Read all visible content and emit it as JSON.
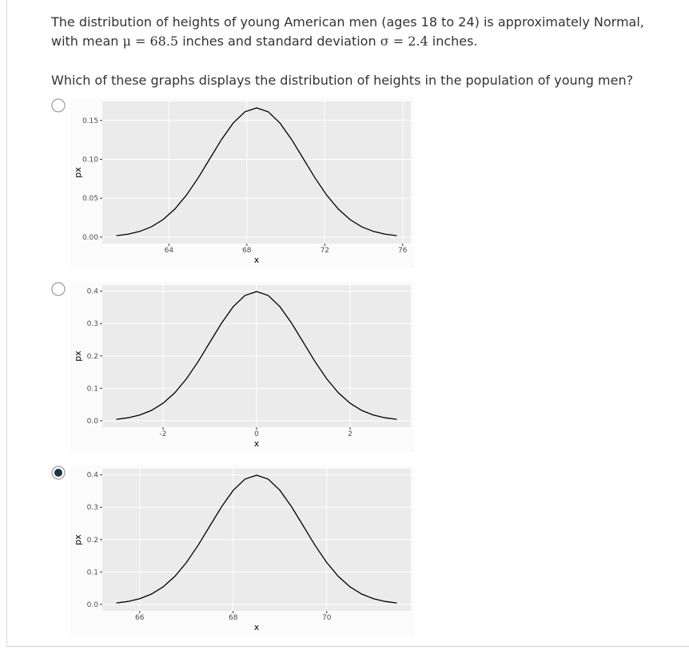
{
  "question": {
    "intro": [
      "The distribution of heights of young American men (ages 18 to 24) is approximately Normal, with mean",
      "μ = 68.5",
      "inches and standard deviation",
      "σ = 2.4",
      "inches."
    ],
    "prompt": "Which of these graphs displays the distribution of heights in the population of young men?"
  },
  "options": [
    {
      "selected": false,
      "chart_data": {
        "type": "line",
        "color": "#000000",
        "grid": true,
        "xlabel": "x",
        "ylabel": "px",
        "x": [
          61.3,
          61.9,
          62.5,
          63.1,
          63.7,
          64.3,
          64.9,
          65.5,
          66.1,
          66.7,
          67.3,
          67.9,
          68.5,
          69.1,
          69.7,
          70.3,
          70.9,
          71.5,
          72.1,
          72.7,
          73.3,
          73.9,
          74.5,
          75.1,
          75.7
        ],
        "values": [
          0.0018,
          0.0038,
          0.0073,
          0.0132,
          0.0225,
          0.036,
          0.054,
          0.0761,
          0.1008,
          0.1255,
          0.1467,
          0.1611,
          0.1662,
          0.1611,
          0.1467,
          0.1255,
          0.1008,
          0.0761,
          0.054,
          0.036,
          0.0225,
          0.0132,
          0.0073,
          0.0038,
          0.0018
        ],
        "xlim": [
          60.58,
          76.42
        ],
        "ylim": [
          -0.0083,
          0.1745
        ],
        "xticks": [
          64,
          68,
          72,
          76
        ],
        "yticks": [
          {
            "value": 0,
            "label": "0.00"
          },
          0.05,
          {
            "value": 0.1,
            "label": "0.10"
          },
          0.15
        ]
      }
    },
    {
      "selected": false,
      "chart_data": {
        "type": "line",
        "color": "#000000",
        "grid": true,
        "xlabel": "x",
        "ylabel": "px",
        "x": [
          -3,
          -2.75,
          -2.5,
          -2.25,
          -2,
          -1.75,
          -1.5,
          -1.25,
          -1,
          -0.75,
          -0.5,
          -0.25,
          0,
          0.25,
          0.5,
          0.75,
          1,
          1.25,
          1.5,
          1.75,
          2,
          2.25,
          2.5,
          2.75,
          3
        ],
        "values": [
          0.0044,
          0.0091,
          0.0175,
          0.0317,
          0.054,
          0.0863,
          0.1295,
          0.1826,
          0.242,
          0.3011,
          0.3521,
          0.3867,
          0.3989,
          0.3867,
          0.3521,
          0.3011,
          0.242,
          0.1826,
          0.1295,
          0.0863,
          0.054,
          0.0317,
          0.0175,
          0.0091,
          0.0044
        ],
        "xlim": [
          -3.3,
          3.3
        ],
        "ylim": [
          -0.02,
          0.4189
        ],
        "xticks": [
          -2,
          0,
          2
        ],
        "yticks": [
          {
            "value": 0,
            "label": "0.0"
          },
          0.1,
          0.2,
          0.3,
          0.4
        ]
      }
    },
    {
      "selected": true,
      "chart_data": {
        "type": "line",
        "color": "#000000",
        "grid": true,
        "xlabel": "x",
        "ylabel": "px",
        "x": [
          65.5,
          65.75,
          66,
          66.25,
          66.5,
          66.75,
          67,
          67.25,
          67.5,
          67.75,
          68,
          68.25,
          68.5,
          68.75,
          69,
          69.25,
          69.5,
          69.75,
          70,
          70.25,
          70.5,
          70.75,
          71,
          71.25,
          71.5
        ],
        "values": [
          0.0044,
          0.0091,
          0.0175,
          0.0317,
          0.054,
          0.0863,
          0.1295,
          0.1826,
          0.242,
          0.3011,
          0.3521,
          0.3867,
          0.3989,
          0.3867,
          0.3521,
          0.3011,
          0.242,
          0.1826,
          0.1295,
          0.0863,
          0.054,
          0.0317,
          0.0175,
          0.0091,
          0.0044
        ],
        "xlim": [
          65.2,
          71.8
        ],
        "ylim": [
          -0.02,
          0.4189
        ],
        "xticks": [
          66,
          68,
          70
        ],
        "yticks": [
          {
            "value": 0,
            "label": "0.0"
          },
          0.1,
          0.2,
          0.3,
          0.4
        ]
      }
    }
  ]
}
